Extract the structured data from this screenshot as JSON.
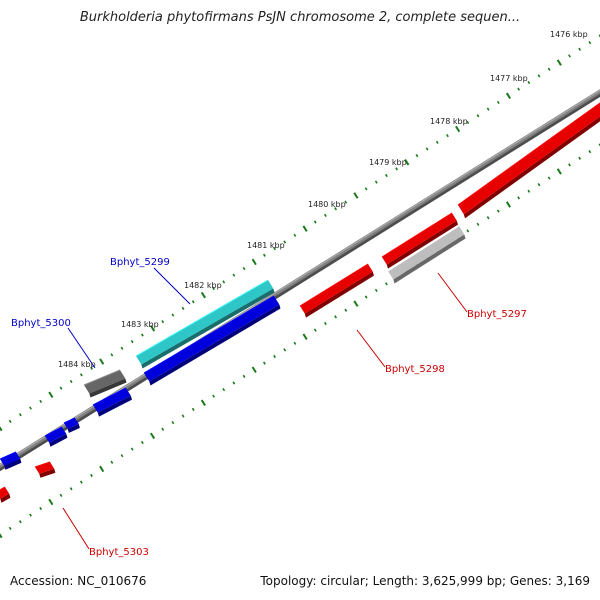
{
  "title": "Burkholderia phytofirmans PsJN chromosome 2, complete sequen...",
  "footer": {
    "accession": "Accession: NC_010676",
    "summary": "Topology: circular; Length: 3,625,999 bp; Genes: 3,169"
  },
  "scale_unit": "kbp",
  "ticks": [
    {
      "label": "1476 kbp"
    },
    {
      "label": "1477 kbp"
    },
    {
      "label": "1478 kbp"
    },
    {
      "label": "1479 kbp"
    },
    {
      "label": "1480 kbp"
    },
    {
      "label": "1481 kbp"
    },
    {
      "label": "1482 kbp"
    },
    {
      "label": "1483 kbp"
    },
    {
      "label": "1484 kbp"
    }
  ],
  "gene_labels": [
    {
      "id": "Bphyt_5299",
      "color": "#0000cc"
    },
    {
      "id": "Bphyt_5300",
      "color": "#0000cc"
    },
    {
      "id": "Bphyt_5297",
      "color": "#cc0000"
    },
    {
      "id": "Bphyt_5298",
      "color": "#cc0000"
    },
    {
      "id": "Bphyt_5303",
      "color": "#cc0000"
    }
  ],
  "colors": {
    "forward_strand_cds": "#e60000",
    "reverse_strand_cds": "#0000dd",
    "highlight_gene": "#2ec6c6",
    "other_gene": "#666666",
    "pseudo_gene": "#bdbdbd",
    "backbone": "#808080",
    "tick_marks": "#1a7a1a"
  }
}
